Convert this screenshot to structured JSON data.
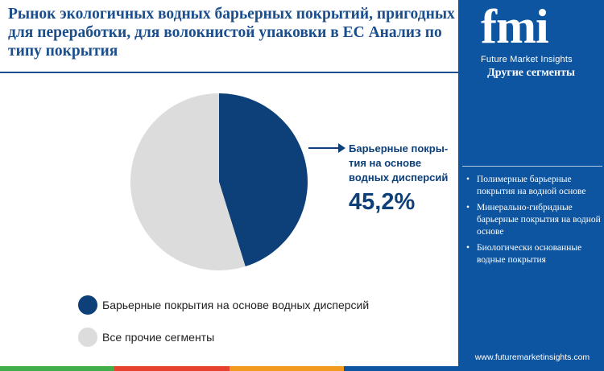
{
  "header": {
    "title": "Рынок экологичных водных барьерных покрытий, пригодных для переработки, для волокнистой упаковки в ЕС Анализ по типу покрытия"
  },
  "chart_data": {
    "type": "pie",
    "slices": [
      {
        "name": "Барьерные покрытия на основе водных дисперсий",
        "value": 45.2,
        "color": "#0d3f78"
      },
      {
        "name": "Все прочие сегменты",
        "value": 54.8,
        "color": "#dcdcdc"
      }
    ],
    "start_angle_deg": 0,
    "direction": "clockwise",
    "callout": {
      "label": "Барьерные покры-тия на основе водных дисперсий",
      "value_text": "45,2%"
    },
    "legend": [
      {
        "label": "Барьерные покрытия на основе водных дисперсий",
        "color": "#0d3f78"
      },
      {
        "label": "Все прочие сегменты",
        "color": "#dcdcdc"
      }
    ]
  },
  "sidebar": {
    "logo_text": "fmi",
    "logo_subtitle": "Future Market Insights",
    "other_segments_title": "Другие сегменты",
    "other_segments": [
      "Полимерные барьерные покрытия на водной основе",
      "Минерально-гибридные барьерные покрытия на водной основе",
      "Биологически основанные водные покрытия"
    ],
    "website": "www.futuremarketinsights.com"
  },
  "colors": {
    "brand_blue": "#0d55a0",
    "dark_blue": "#0d3f78",
    "title_blue": "#1a4e8c",
    "bottom_bar": [
      "#3fae49",
      "#e6412f",
      "#f29a1f",
      "#0d55a0"
    ]
  }
}
